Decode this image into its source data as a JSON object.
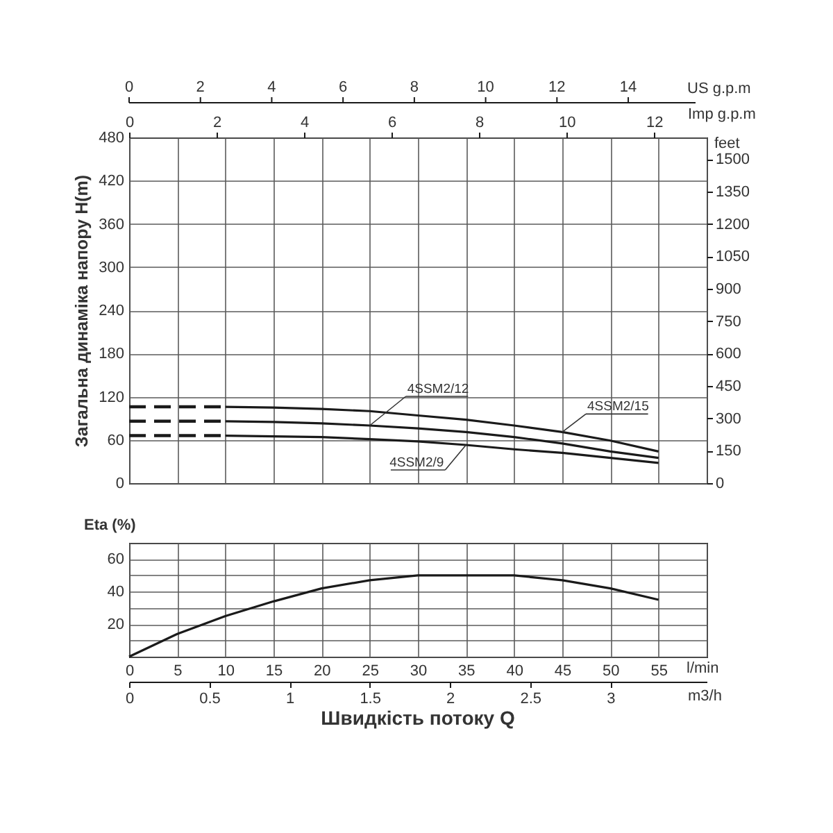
{
  "chart_data": [
    {
      "type": "line",
      "ylabel": "Загальна динаміка напору H(m)",
      "y2label": "feet",
      "x2label": "Imp g.p.m",
      "annotations": [
        "US g.p.m",
        "0",
        "2",
        "4",
        "6",
        "8",
        "10",
        "12",
        "14"
      ],
      "xlim": [
        0,
        60
      ],
      "xticks": [
        0,
        5,
        10,
        15,
        20,
        25,
        30,
        35,
        40,
        45,
        50,
        55,
        60
      ],
      "ylim": [
        0,
        480
      ],
      "yticks": [
        0,
        60,
        120,
        180,
        240,
        300,
        360,
        420,
        480
      ],
      "y2lim": [
        0,
        1600
      ],
      "y2ticks": [
        0,
        150,
        300,
        450,
        600,
        750,
        900,
        1050,
        1200,
        1350,
        1500
      ],
      "x2lim": [
        0,
        13.2
      ],
      "x2ticks": [
        0,
        2,
        4,
        6,
        8,
        10,
        12
      ],
      "tick_labels": "y",
      "grid": true,
      "series": [
        {
          "x": [
            0,
            10
          ],
          "values": [
            106,
            106
          ],
          "color": "#1a1a1a",
          "line_style": "dashed"
        },
        {
          "name": "4SSM2/15",
          "x": [
            10,
            15,
            20,
            25,
            30,
            35,
            40,
            45,
            50,
            55
          ],
          "values": [
            106,
            105,
            103,
            100,
            94,
            88,
            80,
            71,
            59,
            44
          ],
          "color": "#1a1a1a",
          "line_style": "solid"
        },
        {
          "x": [
            0,
            10
          ],
          "values": [
            86,
            86
          ],
          "color": "#1a1a1a",
          "line_style": "dashed"
        },
        {
          "name": "4SSM2/12",
          "x": [
            10,
            15,
            20,
            25,
            30,
            35,
            40,
            45,
            50,
            55
          ],
          "values": [
            86,
            85,
            83,
            80,
            76,
            71,
            64,
            55,
            44,
            35
          ],
          "color": "#1a1a1a",
          "line_style": "solid"
        },
        {
          "x": [
            0,
            10
          ],
          "values": [
            66,
            66
          ],
          "color": "#1a1a1a",
          "line_style": "dashed"
        },
        {
          "name": "4SSM2/9",
          "x": [
            10,
            15,
            20,
            25,
            30,
            35,
            40,
            45,
            50,
            55
          ],
          "values": [
            66,
            65,
            64,
            61,
            58,
            53,
            47,
            42,
            35,
            28
          ],
          "color": "#1a1a1a",
          "line_style": "solid"
        }
      ]
    },
    {
      "type": "line",
      "ylabel": "Eta (%)",
      "xlabel": "l/min",
      "x2label": "m3/h",
      "annotations": [
        "Швидкість потоку Q"
      ],
      "xlim": [
        0,
        60
      ],
      "xticks": [
        0,
        5,
        10,
        15,
        20,
        25,
        30,
        35,
        40,
        45,
        50,
        55,
        {
          "value": 60,
          "label": null
        }
      ],
      "ylim": [
        0,
        70
      ],
      "yticks": [
        {
          "value": 0,
          "label": null
        },
        {
          "value": 10,
          "label": null
        },
        20,
        {
          "value": 30,
          "label": null
        },
        40,
        {
          "value": 50,
          "label": null
        },
        60,
        {
          "value": 70,
          "label": null
        }
      ],
      "x2lim": [
        0,
        3.6
      ],
      "x2ticks": [
        0,
        0.5,
        1,
        1.5,
        2,
        2.5,
        3
      ],
      "grid": true,
      "x": [
        0,
        5,
        10,
        15,
        20,
        25,
        30,
        35,
        40,
        45,
        50,
        55
      ],
      "values": [
        0,
        14,
        25,
        34,
        42,
        47,
        50,
        50,
        50,
        47,
        42,
        35
      ],
      "color": "#1a1a1a",
      "line_style": "solid"
    }
  ]
}
